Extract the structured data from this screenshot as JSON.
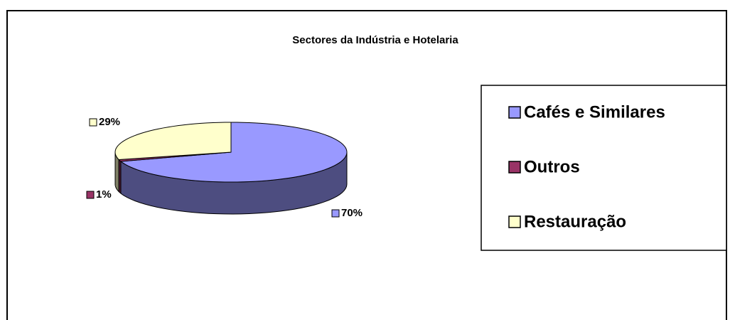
{
  "chart_data": {
    "type": "pie",
    "title": "Sectores da Indústria e Hotelaria",
    "categories": [
      "Cafés e Similares",
      "Outros",
      "Restauração"
    ],
    "values": [
      70,
      1,
      29
    ],
    "value_labels": [
      "70%",
      "1%",
      "29%"
    ],
    "colors": [
      "#9999ff",
      "#993366",
      "#ffffcc"
    ],
    "legend": "right"
  }
}
